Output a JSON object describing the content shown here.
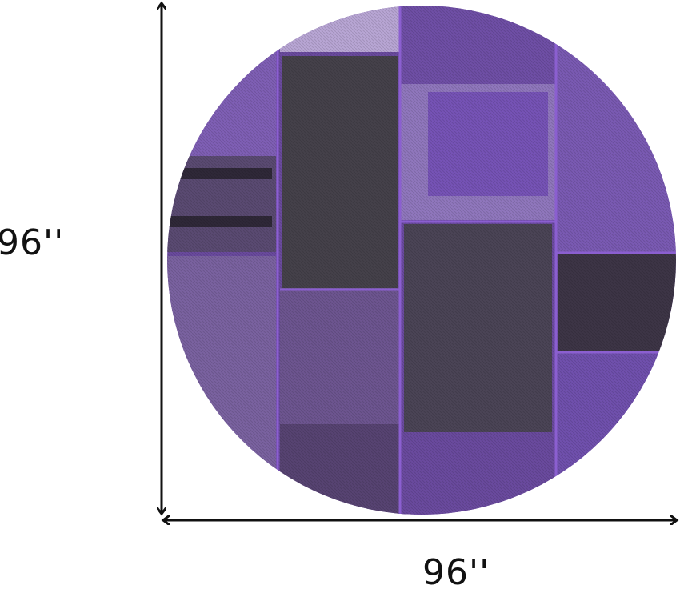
{
  "product": {
    "height_label": "96''",
    "width_label": "96''",
    "shape": "round",
    "colors": {
      "primary": "#6a4a9e",
      "dark": "#3a3440",
      "light": "#a78cc9",
      "accent": "#8b5fd0"
    }
  }
}
